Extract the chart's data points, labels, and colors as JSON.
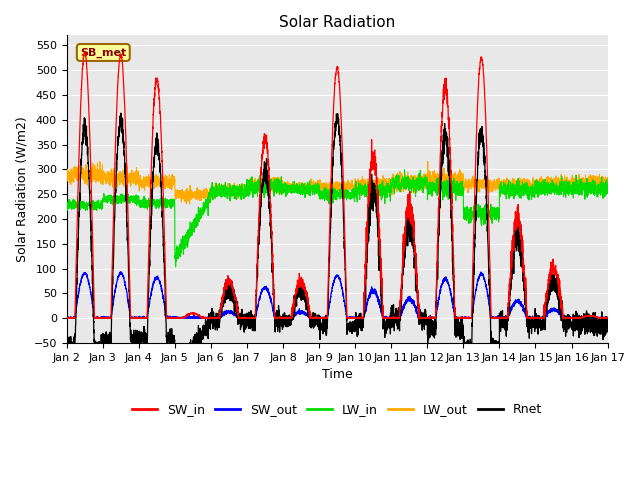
{
  "title": "Solar Radiation",
  "xlabel": "Time",
  "ylabel": "Solar Radiation (W/m2)",
  "ylim": [
    -50,
    570
  ],
  "yticks": [
    -50,
    0,
    50,
    100,
    150,
    200,
    250,
    300,
    350,
    400,
    450,
    500,
    550
  ],
  "colors": {
    "SW_in": "#ff0000",
    "SW_out": "#0000ff",
    "LW_in": "#00dd00",
    "LW_out": "#ffaa00",
    "Rnet": "#000000"
  },
  "annotation_text": "SB_met",
  "annotation_bg": "#ffff99",
  "annotation_border": "#996600",
  "background_color": "#e8e8e8",
  "n_days": 15,
  "start_day": 2,
  "points_per_day": 288,
  "sw_in_peaks": [
    535,
    530,
    480,
    10,
    75,
    365,
    75,
    505,
    325,
    230,
    465,
    525,
    205,
    100,
    5
  ],
  "cloud_noise": [
    0.02,
    0.02,
    0.06,
    0.5,
    0.4,
    0.12,
    0.5,
    0.03,
    0.3,
    0.4,
    0.12,
    0.03,
    0.35,
    0.5,
    0.5
  ],
  "lw_in_vals": [
    228,
    240,
    232,
    120,
    255,
    265,
    260,
    250,
    258,
    272,
    262,
    210,
    258,
    262,
    262
  ],
  "lw_in_ramp": [
    false,
    false,
    false,
    true,
    false,
    false,
    false,
    false,
    false,
    false,
    false,
    false,
    false,
    false,
    false
  ],
  "lw_in_ramp_end": [
    0,
    0,
    0,
    248,
    0,
    0,
    0,
    0,
    0,
    0,
    0,
    248,
    0,
    0,
    0
  ],
  "lw_out_vals": [
    288,
    282,
    275,
    248,
    258,
    270,
    265,
    265,
    270,
    275,
    280,
    270,
    268,
    272,
    275
  ],
  "lw_out_noise": [
    8,
    8,
    6,
    6,
    6,
    6,
    5,
    5,
    6,
    8,
    8,
    6,
    6,
    6,
    6
  ],
  "lw_in_noise": [
    5,
    5,
    5,
    8,
    8,
    8,
    6,
    6,
    8,
    8,
    8,
    8,
    8,
    8,
    8
  ],
  "figsize": [
    6.4,
    4.8
  ],
  "dpi": 100
}
